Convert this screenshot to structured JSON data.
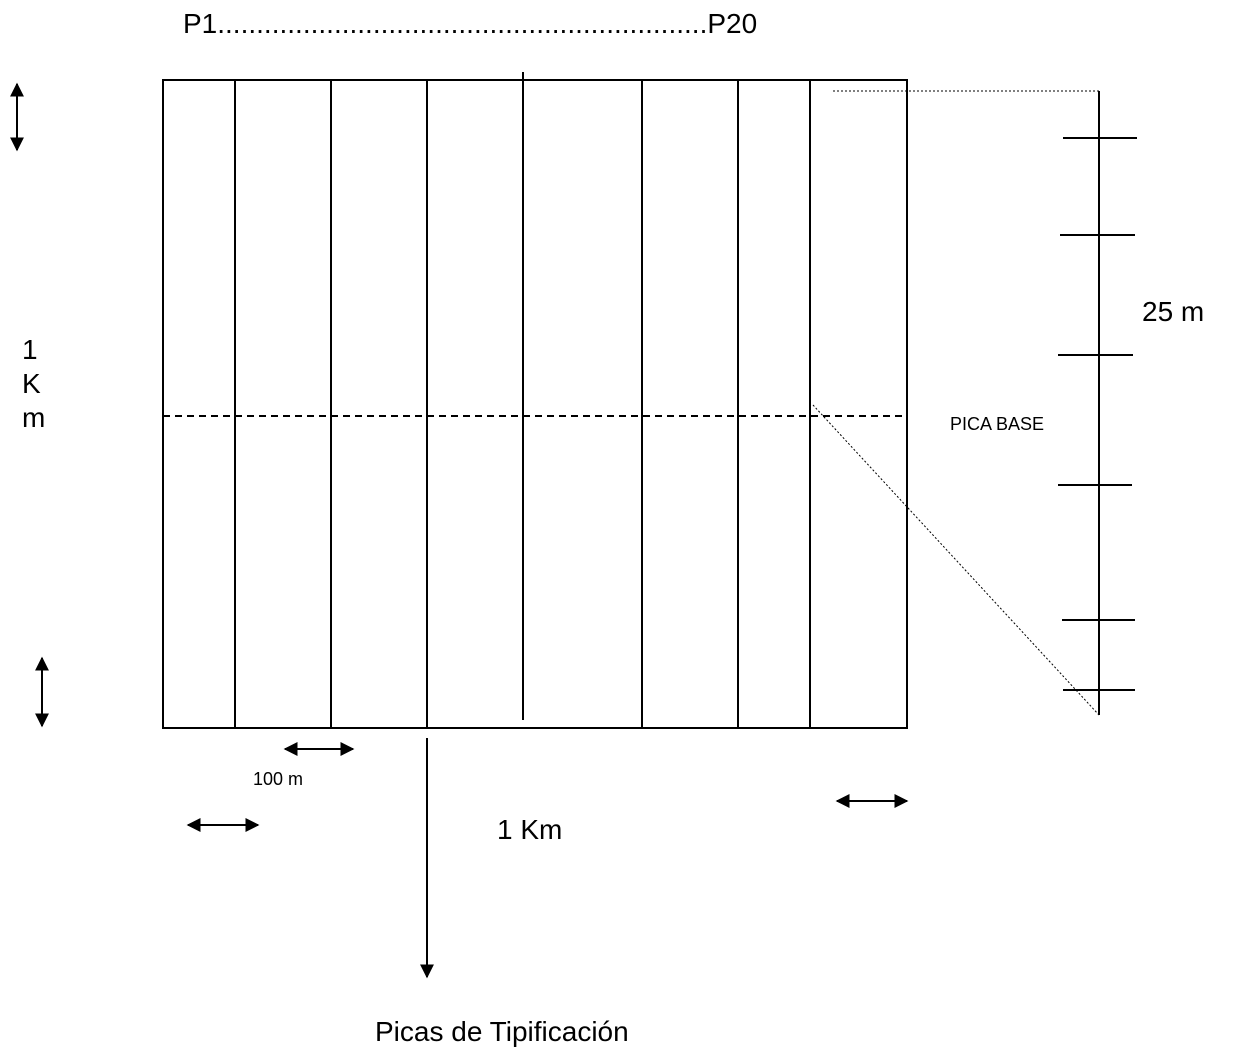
{
  "labels": {
    "strip_range": "P1...............................................................P20",
    "width_label": "1 Km",
    "height_label_lines": [
      "1",
      "K",
      "m"
    ],
    "spacing_label": "100 m",
    "segment_label": "25 m",
    "base_label": "PICA BASE",
    "caption": "Picas de Tipificación"
  },
  "colors": {
    "stroke": "#000000",
    "background": "#ffffff"
  },
  "icons": {
    "vertical_arrow": "double-vertical-arrow-icon",
    "horizontal_arrow": "double-horizontal-arrow-icon",
    "down_arrow": "down-arrow-icon"
  }
}
